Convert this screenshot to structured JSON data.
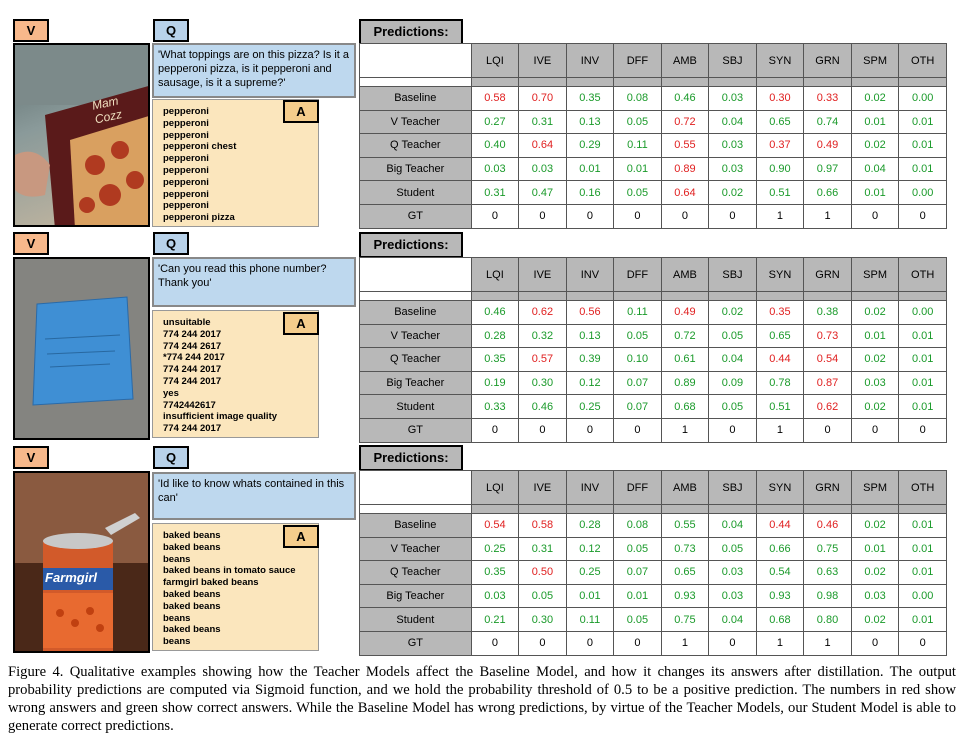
{
  "tags": {
    "v": "V",
    "q": "Q",
    "a": "A",
    "pred": "Predictions:"
  },
  "columns": [
    "LQI",
    "IVE",
    "INV",
    "DFF",
    "AMB",
    "SBJ",
    "SYN",
    "GRN",
    "SPM",
    "OTH"
  ],
  "rows": [
    "Baseline",
    "V Teacher",
    "Q Teacher",
    "Big Teacher",
    "Student",
    "GT"
  ],
  "colors": {
    "red": "#e02020",
    "green": "#1a9a2a"
  },
  "examples": [
    {
      "question": "'What toppings are on this pizza? Is it a pepperoni pizza, is it pepperoni and sausage, is it a supreme?'",
      "answers": [
        "pepperoni",
        "pepperoni",
        "pepperoni",
        "pepperoni chest",
        "pepperoni",
        "pepperoni",
        "pepperoni",
        "pepperoni",
        "pepperoni",
        "pepperoni pizza"
      ],
      "table": [
        [
          [
            "0.58",
            "r"
          ],
          [
            "0.70",
            "r"
          ],
          [
            "0.35",
            "g"
          ],
          [
            "0.08",
            "g"
          ],
          [
            "0.46",
            "g"
          ],
          [
            "0.03",
            "g"
          ],
          [
            "0.30",
            "r"
          ],
          [
            "0.33",
            "r"
          ],
          [
            "0.02",
            "g"
          ],
          [
            "0.00",
            "g"
          ]
        ],
        [
          [
            "0.27",
            "g"
          ],
          [
            "0.31",
            "g"
          ],
          [
            "0.13",
            "g"
          ],
          [
            "0.05",
            "g"
          ],
          [
            "0.72",
            "r"
          ],
          [
            "0.04",
            "g"
          ],
          [
            "0.65",
            "g"
          ],
          [
            "0.74",
            "g"
          ],
          [
            "0.01",
            "g"
          ],
          [
            "0.01",
            "g"
          ]
        ],
        [
          [
            "0.40",
            "g"
          ],
          [
            "0.64",
            "r"
          ],
          [
            "0.29",
            "g"
          ],
          [
            "0.11",
            "g"
          ],
          [
            "0.55",
            "r"
          ],
          [
            "0.03",
            "g"
          ],
          [
            "0.37",
            "r"
          ],
          [
            "0.49",
            "r"
          ],
          [
            "0.02",
            "g"
          ],
          [
            "0.01",
            "g"
          ]
        ],
        [
          [
            "0.03",
            "g"
          ],
          [
            "0.03",
            "g"
          ],
          [
            "0.01",
            "g"
          ],
          [
            "0.01",
            "g"
          ],
          [
            "0.89",
            "r"
          ],
          [
            "0.03",
            "g"
          ],
          [
            "0.90",
            "g"
          ],
          [
            "0.97",
            "g"
          ],
          [
            "0.04",
            "g"
          ],
          [
            "0.01",
            "g"
          ]
        ],
        [
          [
            "0.31",
            "g"
          ],
          [
            "0.47",
            "g"
          ],
          [
            "0.16",
            "g"
          ],
          [
            "0.05",
            "g"
          ],
          [
            "0.64",
            "r"
          ],
          [
            "0.02",
            "g"
          ],
          [
            "0.51",
            "g"
          ],
          [
            "0.66",
            "g"
          ],
          [
            "0.01",
            "g"
          ],
          [
            "0.00",
            "g"
          ]
        ],
        [
          [
            "0",
            ""
          ],
          [
            "0",
            ""
          ],
          [
            "0",
            ""
          ],
          [
            "0",
            ""
          ],
          [
            "0",
            ""
          ],
          [
            "0",
            ""
          ],
          [
            "1",
            ""
          ],
          [
            "1",
            ""
          ],
          [
            "0",
            ""
          ],
          [
            "0",
            ""
          ]
        ]
      ]
    },
    {
      "question": "'Can you read this phone number? Thank you'",
      "answers": [
        "unsuitable",
        "774 244 2017",
        "774 244 2617",
        "*774 244 2017",
        "774 244 2017",
        "774 244 2017",
        "yes",
        "7742442617",
        "insufficient image quality",
        "774 244 2017"
      ],
      "table": [
        [
          [
            "0.46",
            "g"
          ],
          [
            "0.62",
            "r"
          ],
          [
            "0.56",
            "r"
          ],
          [
            "0.11",
            "g"
          ],
          [
            "0.49",
            "r"
          ],
          [
            "0.02",
            "g"
          ],
          [
            "0.35",
            "r"
          ],
          [
            "0.38",
            "g"
          ],
          [
            "0.02",
            "g"
          ],
          [
            "0.00",
            "g"
          ]
        ],
        [
          [
            "0.28",
            "g"
          ],
          [
            "0.32",
            "g"
          ],
          [
            "0.13",
            "g"
          ],
          [
            "0.05",
            "g"
          ],
          [
            "0.72",
            "g"
          ],
          [
            "0.05",
            "g"
          ],
          [
            "0.65",
            "g"
          ],
          [
            "0.73",
            "r"
          ],
          [
            "0.01",
            "g"
          ],
          [
            "0.01",
            "g"
          ]
        ],
        [
          [
            "0.35",
            "g"
          ],
          [
            "0.57",
            "r"
          ],
          [
            "0.39",
            "g"
          ],
          [
            "0.10",
            "g"
          ],
          [
            "0.61",
            "g"
          ],
          [
            "0.04",
            "g"
          ],
          [
            "0.44",
            "r"
          ],
          [
            "0.54",
            "r"
          ],
          [
            "0.02",
            "g"
          ],
          [
            "0.01",
            "g"
          ]
        ],
        [
          [
            "0.19",
            "g"
          ],
          [
            "0.30",
            "g"
          ],
          [
            "0.12",
            "g"
          ],
          [
            "0.07",
            "g"
          ],
          [
            "0.89",
            "g"
          ],
          [
            "0.09",
            "g"
          ],
          [
            "0.78",
            "g"
          ],
          [
            "0.87",
            "r"
          ],
          [
            "0.03",
            "g"
          ],
          [
            "0.01",
            "g"
          ]
        ],
        [
          [
            "0.33",
            "g"
          ],
          [
            "0.46",
            "g"
          ],
          [
            "0.25",
            "g"
          ],
          [
            "0.07",
            "g"
          ],
          [
            "0.68",
            "g"
          ],
          [
            "0.05",
            "g"
          ],
          [
            "0.51",
            "g"
          ],
          [
            "0.62",
            "r"
          ],
          [
            "0.02",
            "g"
          ],
          [
            "0.01",
            "g"
          ]
        ],
        [
          [
            "0",
            ""
          ],
          [
            "0",
            ""
          ],
          [
            "0",
            ""
          ],
          [
            "0",
            ""
          ],
          [
            "1",
            ""
          ],
          [
            "0",
            ""
          ],
          [
            "1",
            ""
          ],
          [
            "0",
            ""
          ],
          [
            "0",
            ""
          ],
          [
            "0",
            ""
          ]
        ]
      ]
    },
    {
      "question": "'Id like to know whats contained in this can'",
      "answers": [
        "baked beans",
        "baked beans",
        "beans",
        "baked beans in tomato sauce",
        "farmgirl baked beans",
        "baked beans",
        "baked beans",
        "beans",
        "baked beans",
        "beans"
      ],
      "table": [
        [
          [
            "0.54",
            "r"
          ],
          [
            "0.58",
            "r"
          ],
          [
            "0.28",
            "g"
          ],
          [
            "0.08",
            "g"
          ],
          [
            "0.55",
            "g"
          ],
          [
            "0.04",
            "g"
          ],
          [
            "0.44",
            "r"
          ],
          [
            "0.46",
            "r"
          ],
          [
            "0.02",
            "g"
          ],
          [
            "0.01",
            "g"
          ]
        ],
        [
          [
            "0.25",
            "g"
          ],
          [
            "0.31",
            "g"
          ],
          [
            "0.12",
            "g"
          ],
          [
            "0.05",
            "g"
          ],
          [
            "0.73",
            "g"
          ],
          [
            "0.05",
            "g"
          ],
          [
            "0.66",
            "g"
          ],
          [
            "0.75",
            "g"
          ],
          [
            "0.01",
            "g"
          ],
          [
            "0.01",
            "g"
          ]
        ],
        [
          [
            "0.35",
            "g"
          ],
          [
            "0.50",
            "r"
          ],
          [
            "0.25",
            "g"
          ],
          [
            "0.07",
            "g"
          ],
          [
            "0.65",
            "g"
          ],
          [
            "0.03",
            "g"
          ],
          [
            "0.54",
            "g"
          ],
          [
            "0.63",
            "g"
          ],
          [
            "0.02",
            "g"
          ],
          [
            "0.01",
            "g"
          ]
        ],
        [
          [
            "0.03",
            "g"
          ],
          [
            "0.05",
            "g"
          ],
          [
            "0.01",
            "g"
          ],
          [
            "0.01",
            "g"
          ],
          [
            "0.93",
            "g"
          ],
          [
            "0.03",
            "g"
          ],
          [
            "0.93",
            "g"
          ],
          [
            "0.98",
            "g"
          ],
          [
            "0.03",
            "g"
          ],
          [
            "0.00",
            "g"
          ]
        ],
        [
          [
            "0.21",
            "g"
          ],
          [
            "0.30",
            "g"
          ],
          [
            "0.11",
            "g"
          ],
          [
            "0.05",
            "g"
          ],
          [
            "0.75",
            "g"
          ],
          [
            "0.04",
            "g"
          ],
          [
            "0.68",
            "g"
          ],
          [
            "0.80",
            "g"
          ],
          [
            "0.02",
            "g"
          ],
          [
            "0.01",
            "g"
          ]
        ],
        [
          [
            "0",
            ""
          ],
          [
            "0",
            ""
          ],
          [
            "0",
            ""
          ],
          [
            "0",
            ""
          ],
          [
            "1",
            ""
          ],
          [
            "0",
            ""
          ],
          [
            "1",
            ""
          ],
          [
            "1",
            ""
          ],
          [
            "0",
            ""
          ],
          [
            "0",
            ""
          ]
        ]
      ]
    }
  ],
  "photos": [
    {
      "text": "Mam Cozz"
    },
    {
      "text": ""
    },
    {
      "text": "Farmgirl"
    }
  ],
  "caption": "Figure 4. Qualitative examples showing how the Teacher Models affect the Baseline Model, and how it changes its answers after distillation. The output probability predictions are computed via Sigmoid function, and we hold the probability threshold of 0.5 to be a positive prediction. The numbers in red show wrong answers and green show correct answers. While the Baseline Model has wrong predictions, by virtue of the Teacher Models, our Student Model is able to generate correct predictions."
}
